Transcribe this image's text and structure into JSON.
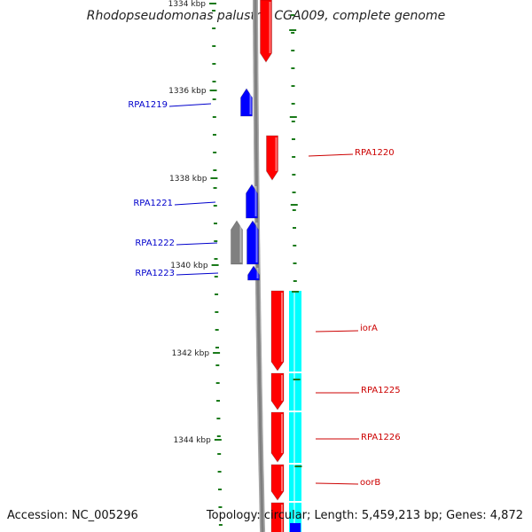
{
  "title": "Rhodopseudomonas palustris CGA009, complete genome",
  "accession": "Accession: NC_005296",
  "summary": "Topology: circular; Length: 5,459,213 bp; Genes: 4,872",
  "colors": {
    "forward": "#ff0000",
    "reverse": "#0000ff",
    "other": "#808080",
    "cds_track": "#00ffff",
    "tick": "#1a7a1a",
    "backbone": "#808080"
  },
  "ruler": {
    "unit": "kbp",
    "labels": [
      "1334 kbp",
      "1336 kbp",
      "1338 kbp",
      "1340 kbp",
      "1342 kbp",
      "1344 kbp"
    ]
  },
  "genes": [
    {
      "name": "RPA1219",
      "strand": "reverse"
    },
    {
      "name": "RPA1220",
      "strand": "forward"
    },
    {
      "name": "RPA1221",
      "strand": "reverse"
    },
    {
      "name": "RPA1222",
      "strand": "reverse"
    },
    {
      "name": "RPA1223",
      "strand": "reverse"
    },
    {
      "name": "iorA",
      "strand": "forward"
    },
    {
      "name": "RPA1225",
      "strand": "forward"
    },
    {
      "name": "RPA1226",
      "strand": "forward"
    },
    {
      "name": "oorB",
      "strand": "forward"
    }
  ]
}
